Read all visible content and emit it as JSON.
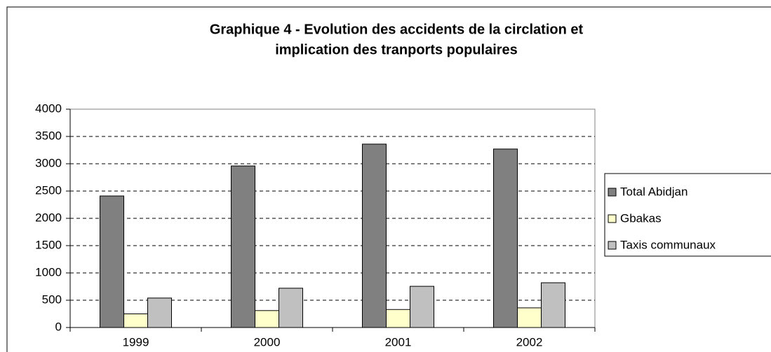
{
  "chart_data": {
    "type": "bar",
    "title": [
      "Graphique 4 - Evolution des accidents de la circlation et",
      "implication des tranports populaires"
    ],
    "categories": [
      "1999",
      "2000",
      "2001",
      "2002"
    ],
    "series": [
      {
        "name": "Total Abidjan",
        "color": "#808080",
        "values": [
          2410,
          2960,
          3360,
          3270
        ]
      },
      {
        "name": "Gbakas",
        "color": "#ffffcc",
        "values": [
          250,
          310,
          330,
          360
        ]
      },
      {
        "name": "Taxis communaux",
        "color": "#c0c0c0",
        "values": [
          540,
          720,
          755,
          820
        ]
      }
    ],
    "ylim": [
      0,
      4000
    ],
    "yticks": [
      0,
      500,
      1000,
      1500,
      2000,
      2500,
      3000,
      3500,
      4000
    ],
    "grid": true,
    "legend": "right"
  }
}
